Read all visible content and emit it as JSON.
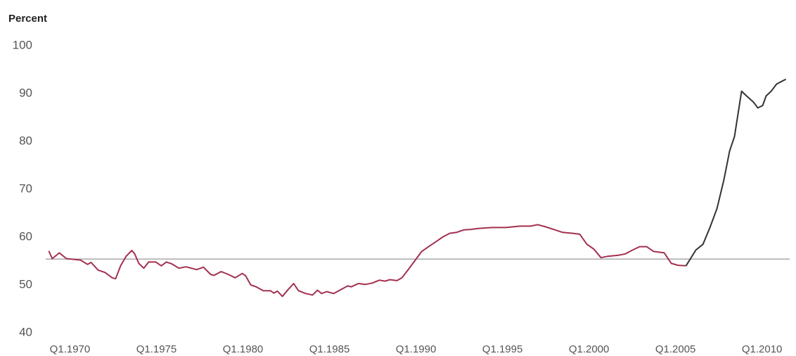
{
  "chart_data": {
    "type": "line",
    "y_axis_label": "Percent",
    "x": [
      1968.78,
      1968.98,
      1969.39,
      1969.8,
      1970.61,
      1971.02,
      1971.22,
      1971.63,
      1972.03,
      1972.44,
      1972.64,
      1972.93,
      1973.25,
      1973.58,
      1973.74,
      1973.98,
      1974.27,
      1974.55,
      1974.96,
      1975.28,
      1975.57,
      1975.89,
      1976.3,
      1976.71,
      1977.32,
      1977.72,
      1978.13,
      1978.33,
      1978.74,
      1979.15,
      1979.55,
      1979.96,
      1980.16,
      1980.45,
      1980.77,
      1981.18,
      1981.59,
      1981.79,
      1981.99,
      1982.28,
      1982.6,
      1982.93,
      1983.21,
      1983.62,
      1984.02,
      1984.31,
      1984.55,
      1984.84,
      1985.24,
      1985.65,
      1986.06,
      1986.26,
      1986.67,
      1987.07,
      1987.48,
      1987.89,
      1988.21,
      1988.5,
      1988.9,
      1989.19,
      1989.51,
      1989.92,
      1990.33,
      1990.73,
      1991.14,
      1991.54,
      1991.95,
      1992.36,
      1992.76,
      1993.17,
      1993.58,
      1994.39,
      1995.2,
      1996.02,
      1996.63,
      1997.03,
      1997.44,
      1998.05,
      1998.46,
      1999.07,
      1999.47,
      1999.88,
      2000.28,
      2000.69,
      2001.1,
      2001.71,
      2002.11,
      2002.52,
      2002.93,
      2003.33,
      2003.74,
      2004.35,
      2004.76,
      2005.16,
      2005.61,
      2006.18,
      2006.59,
      2006.99,
      2007.4,
      2007.8,
      2008.13,
      2008.41,
      2008.82,
      2009.11,
      2009.51,
      2009.76,
      2010.04,
      2010.24,
      2010.53,
      2010.85,
      2011.38
    ],
    "series": [
      {
        "color": "#a3304f",
        "values": [
          57.1,
          55.5,
          56.7,
          55.5,
          55.2,
          54.3,
          54.7,
          53.1,
          52.6,
          51.5,
          51.3,
          54.0,
          56.0,
          57.2,
          56.5,
          54.5,
          53.5,
          54.8,
          54.8,
          54.0,
          54.8,
          54.4,
          53.5,
          53.8,
          53.2,
          53.7,
          52.2,
          52.0,
          52.8,
          52.2,
          51.5,
          52.4,
          51.9,
          50.0,
          49.6,
          48.8,
          48.8,
          48.3,
          48.7,
          47.6,
          49.0,
          50.3,
          48.8,
          48.2,
          47.9,
          48.9,
          48.2,
          48.6,
          48.2,
          49.0,
          49.8,
          49.6,
          50.3,
          50.1,
          50.4,
          51.0,
          50.8,
          51.1,
          50.9,
          51.5,
          53.0,
          55.0,
          57.0,
          58.0,
          59.0,
          60.0,
          60.8,
          61.0,
          61.5,
          61.6,
          61.8,
          62.0,
          62.0,
          62.3,
          62.3,
          62.6,
          62.2,
          61.5,
          61.0,
          60.8,
          60.6,
          58.5,
          57.5,
          55.7,
          56.0,
          56.2,
          56.5,
          57.3,
          58.0,
          58.0,
          57.0,
          56.7,
          54.5,
          54.1,
          54.0,
          null,
          null,
          null,
          null,
          null,
          null,
          null,
          null,
          null,
          null,
          null,
          null,
          null,
          null,
          null,
          null
        ]
      },
      {
        "color": "#333333",
        "values": [
          null,
          null,
          null,
          null,
          null,
          null,
          null,
          null,
          null,
          null,
          null,
          null,
          null,
          null,
          null,
          null,
          null,
          null,
          null,
          null,
          null,
          null,
          null,
          null,
          null,
          null,
          null,
          null,
          null,
          null,
          null,
          null,
          null,
          null,
          null,
          null,
          null,
          null,
          null,
          null,
          null,
          null,
          null,
          null,
          null,
          null,
          null,
          null,
          null,
          null,
          null,
          null,
          null,
          null,
          null,
          null,
          null,
          null,
          null,
          null,
          null,
          null,
          null,
          null,
          null,
          null,
          null,
          null,
          null,
          null,
          null,
          null,
          null,
          null,
          null,
          null,
          null,
          null,
          null,
          null,
          null,
          null,
          null,
          null,
          null,
          null,
          null,
          null,
          null,
          null,
          null,
          null,
          null,
          null,
          54.0,
          57.3,
          58.5,
          62.0,
          66.0,
          72.0,
          78.0,
          81.0,
          90.5,
          89.5,
          88.2,
          87.0,
          87.5,
          89.5,
          90.5,
          92.0,
          93.0
        ]
      }
    ],
    "reference_line": {
      "value": 55.4,
      "color": "#aaaaaa"
    },
    "xlim": [
      1968.6,
      2011.6
    ],
    "xticks": [
      {
        "value": 1970,
        "label": "Q1.1970"
      },
      {
        "value": 1975,
        "label": "Q1.1975"
      },
      {
        "value": 1980,
        "label": "Q1.1980"
      },
      {
        "value": 1985,
        "label": "Q1.1985"
      },
      {
        "value": 1990,
        "label": "Q1.1990"
      },
      {
        "value": 1995,
        "label": "Q1.1995"
      },
      {
        "value": 2000,
        "label": "Q1.2000"
      },
      {
        "value": 2005,
        "label": "Q1.2005"
      },
      {
        "value": 2010,
        "label": "Q1.2010"
      }
    ],
    "ylim": [
      40,
      100
    ],
    "yticks": [
      40,
      50,
      60,
      70,
      80,
      90,
      100
    ],
    "grid": false
  }
}
